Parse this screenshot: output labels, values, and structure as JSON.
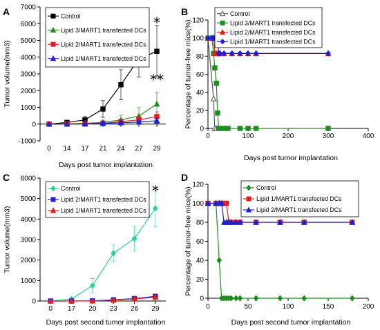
{
  "chart_data": [
    {
      "panel": "A",
      "type": "line",
      "categories": [
        "0",
        "14",
        "17",
        "21",
        "24",
        "27",
        "29"
      ],
      "ylim": [
        -1000,
        7000
      ],
      "yticks": [
        -1000,
        0,
        1000,
        2000,
        3000,
        4000,
        5000,
        6000,
        7000
      ],
      "xlabel": "Days post tumor implantation",
      "ylabel": "Tumor volume(mm3)",
      "legend_position": "top-left",
      "series": [
        {
          "name": "Control",
          "color": "#000000",
          "marker": "square",
          "values": [
            0,
            100,
            250,
            900,
            2350,
            3900,
            4350
          ],
          "errors": [
            0,
            80,
            200,
            500,
            900,
            1100,
            1550
          ]
        },
        {
          "name": "Lipid 3/MART1 transfected DCs",
          "color": "#1e8c1e",
          "marker": "triangle",
          "values": [
            0,
            20,
            50,
            100,
            250,
            480,
            1200
          ],
          "errors": [
            0,
            20,
            40,
            100,
            280,
            500,
            700
          ]
        },
        {
          "name": "Lipid 2/MART1 transfected DCs",
          "color": "#e02020",
          "marker": "square",
          "values": [
            0,
            10,
            20,
            50,
            150,
            250,
            450
          ],
          "errors": [
            0,
            15,
            25,
            60,
            120,
            200,
            280
          ]
        },
        {
          "name": "Lipid 1/MART1 transfected DCs",
          "color": "#2020d0",
          "marker": "triangle",
          "values": [
            0,
            5,
            10,
            40,
            80,
            120,
            200
          ],
          "errors": [
            0,
            10,
            15,
            40,
            60,
            90,
            150
          ]
        }
      ],
      "annotations": [
        {
          "text": "*",
          "category": "29",
          "y": 6250
        },
        {
          "text": "**",
          "category": "29",
          "y": 2850
        }
      ]
    },
    {
      "panel": "B",
      "type": "line",
      "xlim": [
        0,
        400
      ],
      "ylim": [
        0,
        120
      ],
      "xticks": [
        0,
        100,
        200,
        300,
        400
      ],
      "yticks": [
        0,
        20,
        40,
        60,
        80,
        100,
        120
      ],
      "xlabel": "Days post tumor implantation",
      "ylabel": "Percentage of tumor-free mice(%)",
      "legend_position": "top-left",
      "series": [
        {
          "name": "Control",
          "color": "#555555",
          "marker": "open-triangle",
          "x": [
            0,
            14,
            17,
            21
          ],
          "y": [
            100,
            33,
            0,
            0
          ]
        },
        {
          "name": "Lipid 3/MART1 transfected DCs",
          "color": "#1e8c1e",
          "marker": "square",
          "x": [
            0,
            10,
            14,
            17,
            21,
            24,
            27,
            30,
            40,
            50,
            80,
            100,
            120,
            300
          ],
          "y": [
            100,
            100,
            83,
            67,
            50,
            17,
            0,
            0,
            0,
            0,
            0,
            0,
            0,
            0
          ]
        },
        {
          "name": "Lipid 2/MART1 transfected DCs",
          "color": "#e02020",
          "marker": "triangle",
          "x": [
            0,
            10,
            14,
            17,
            21,
            24,
            27,
            30,
            40,
            60,
            80,
            100,
            120,
            300
          ],
          "y": [
            100,
            100,
            100,
            83,
            83,
            83,
            83,
            83,
            83,
            83,
            83,
            83,
            83,
            83
          ]
        },
        {
          "name": "Lipid 1/MART1 transfected DCs",
          "color": "#2020d0",
          "marker": "diamond",
          "x": [
            0,
            10,
            14,
            17,
            21,
            24,
            27,
            30,
            40,
            60,
            80,
            100,
            120,
            300
          ],
          "y": [
            100,
            100,
            100,
            100,
            100,
            100,
            83,
            83,
            83,
            83,
            83,
            83,
            83,
            83
          ]
        }
      ]
    },
    {
      "panel": "C",
      "type": "line",
      "categories": [
        "0",
        "17",
        "20",
        "23",
        "26",
        "29"
      ],
      "ylim": [
        0,
        6000
      ],
      "yticks": [
        0,
        1000,
        2000,
        3000,
        4000,
        5000,
        6000
      ],
      "xlabel": "Days post second tumor implantation",
      "ylabel": "Tumor volume(mm3)",
      "legend_position": "top-left",
      "series": [
        {
          "name": "Control",
          "color": "#2ecf9a",
          "marker": "diamond",
          "values": [
            0,
            100,
            750,
            2330,
            3050,
            4520
          ],
          "errors": [
            0,
            60,
            350,
            400,
            600,
            900
          ]
        },
        {
          "name": "Lipid 2/MART1 transfected DCs",
          "color": "#2020d0",
          "marker": "square",
          "values": [
            0,
            0,
            10,
            60,
            120,
            230
          ],
          "errors": [
            0,
            0,
            10,
            40,
            60,
            80
          ]
        },
        {
          "name": "Lipid 1/MART1 transfected DCs",
          "color": "#e02020",
          "marker": "triangle",
          "values": [
            0,
            0,
            5,
            40,
            100,
            180
          ],
          "errors": [
            0,
            0,
            10,
            30,
            50,
            70
          ]
        }
      ],
      "annotations": [
        {
          "text": "*",
          "category": "29",
          "y": 5550
        }
      ]
    },
    {
      "panel": "D",
      "type": "line",
      "xlim": [
        0,
        200
      ],
      "ylim": [
        0,
        120
      ],
      "xticks": [
        0,
        50,
        100,
        150,
        200
      ],
      "yticks": [
        0,
        20,
        40,
        60,
        80,
        100,
        120
      ],
      "xlabel": "Days post second tumor implantation",
      "ylabel": "Percentage of tumor-free mice(%)",
      "legend_position": "top-right",
      "series": [
        {
          "name": "Control",
          "color": "#1e8c1e",
          "marker": "diamond",
          "x": [
            0,
            10,
            14,
            17,
            20,
            23,
            26,
            29,
            35,
            40,
            60,
            90,
            120,
            180
          ],
          "y": [
            100,
            100,
            40,
            0,
            0,
            0,
            0,
            0,
            0,
            0,
            0,
            0,
            0,
            0
          ]
        },
        {
          "name": "Lipid 1/MART1 transfected DCs",
          "color": "#e02020",
          "marker": "square",
          "x": [
            0,
            10,
            14,
            17,
            20,
            23,
            26,
            29,
            35,
            40,
            60,
            90,
            120,
            180
          ],
          "y": [
            100,
            100,
            100,
            100,
            100,
            100,
            80,
            80,
            80,
            80,
            80,
            80,
            80,
            80
          ]
        },
        {
          "name": "Lipid 2/MART1 transfected DCs",
          "color": "#2020d0",
          "marker": "triangle",
          "x": [
            0,
            10,
            14,
            17,
            20,
            23,
            26,
            29,
            35,
            40,
            60,
            90,
            120,
            180
          ],
          "y": [
            100,
            100,
            100,
            100,
            80,
            80,
            80,
            80,
            80,
            80,
            80,
            80,
            80,
            80
          ]
        }
      ]
    }
  ]
}
